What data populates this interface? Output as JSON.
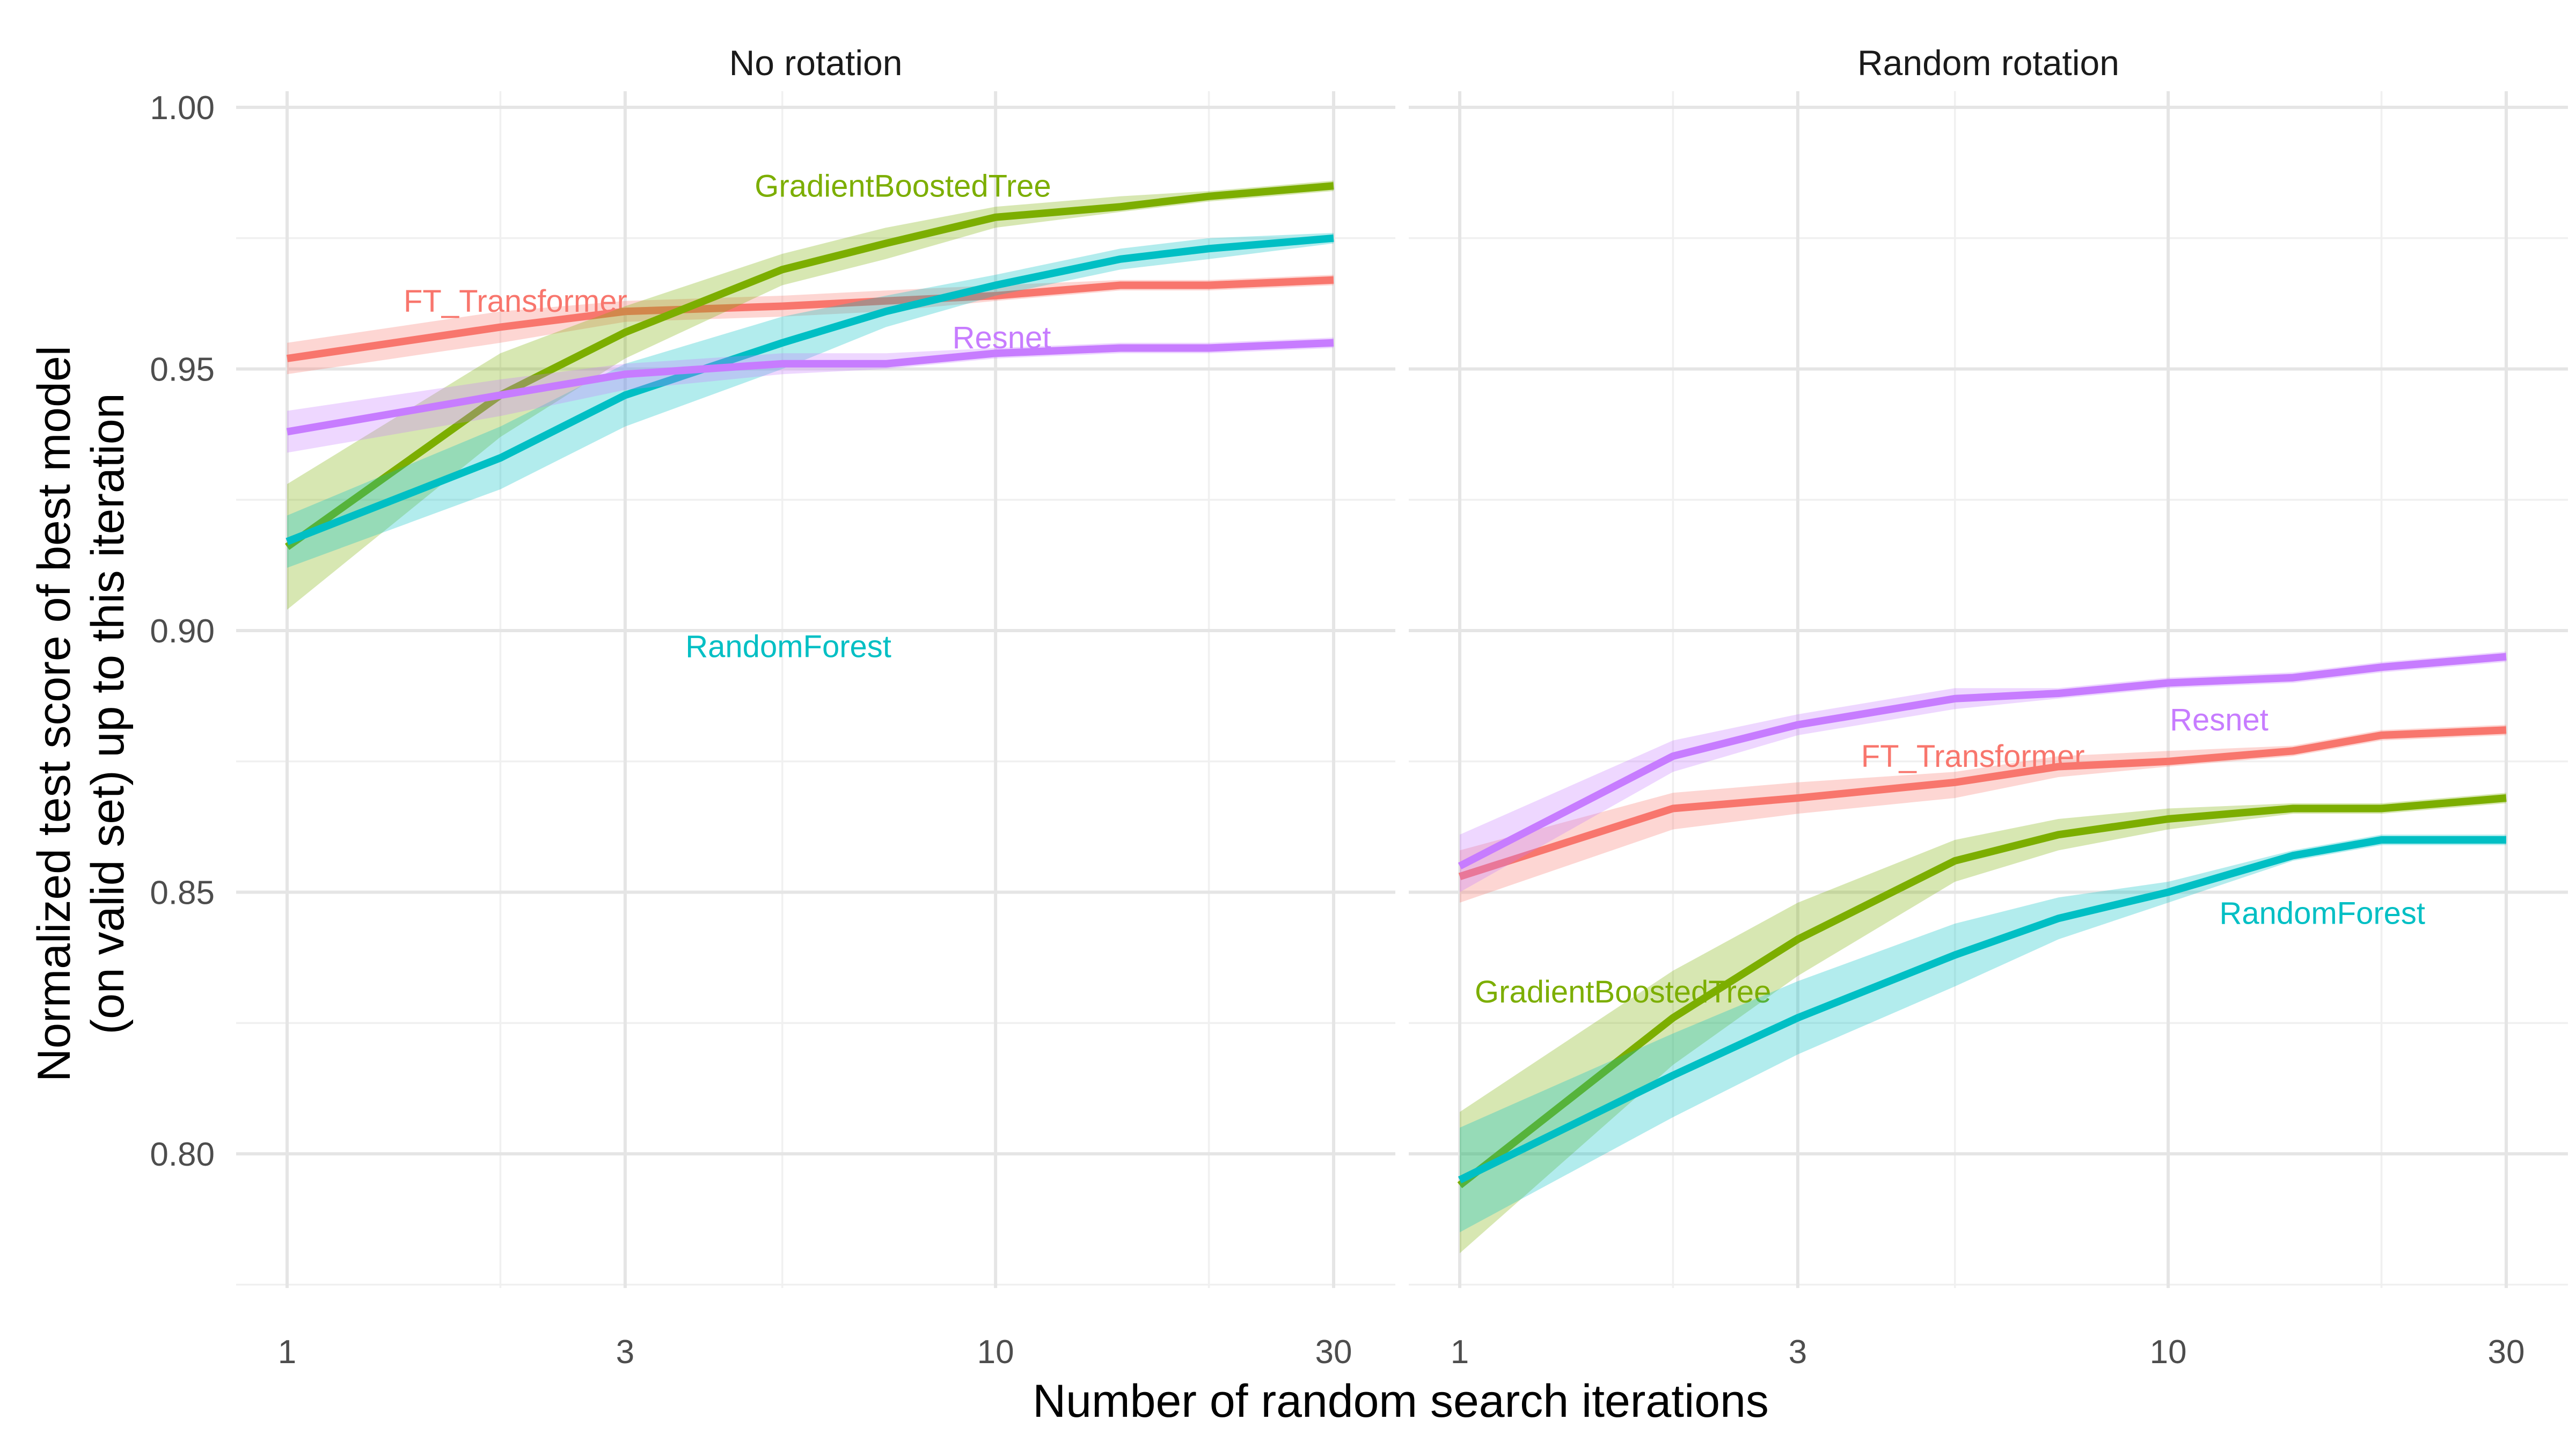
{
  "chart_data": {
    "type": "line",
    "xlabel": "Number of random search iterations",
    "ylabel_lines": [
      "Normalized test score of best model",
      "(on valid set) up to this iteration"
    ],
    "x_scale": "log",
    "x_ticks": [
      1,
      3,
      10,
      30
    ],
    "x_tick_labels": [
      "1",
      "3",
      "10",
      "30"
    ],
    "xlim": [
      1,
      30
    ],
    "ylim": [
      0.775,
      1.0
    ],
    "y_ticks": [
      0.8,
      0.85,
      0.9,
      0.95,
      1.0
    ],
    "y_tick_labels": [
      "0.80",
      "0.85",
      "0.90",
      "0.95",
      "1.00"
    ],
    "grid": true,
    "legend": "none (direct labels)",
    "colors": {
      "FT_Transformer": "#F8766D",
      "GradientBoostedTree": "#7CAE00",
      "RandomForest": "#00BFC4",
      "Resnet": "#C77CFF"
    },
    "panels": [
      {
        "title": "No rotation",
        "series": [
          {
            "name": "FT_Transformer",
            "x": [
              1,
              2,
              3,
              5,
              7,
              10,
              15,
              20,
              30
            ],
            "y": [
              0.952,
              0.958,
              0.961,
              0.962,
              0.963,
              0.964,
              0.966,
              0.966,
              0.967
            ],
            "lo": [
              0.949,
              0.955,
              0.959,
              0.96,
              0.961,
              0.963,
              0.965,
              0.965,
              0.966
            ],
            "hi": [
              0.955,
              0.961,
              0.963,
              0.964,
              0.965,
              0.966,
              0.967,
              0.967,
              0.968
            ],
            "label": {
              "text": "FT_Transformer",
              "x": 2.1,
              "y": 0.963
            }
          },
          {
            "name": "GradientBoostedTree",
            "x": [
              1,
              2,
              3,
              5,
              7,
              10,
              15,
              20,
              30
            ],
            "y": [
              0.916,
              0.945,
              0.957,
              0.969,
              0.974,
              0.979,
              0.981,
              0.983,
              0.985
            ],
            "lo": [
              0.904,
              0.937,
              0.952,
              0.966,
              0.971,
              0.977,
              0.98,
              0.982,
              0.984
            ],
            "hi": [
              0.928,
              0.953,
              0.962,
              0.972,
              0.977,
              0.981,
              0.983,
              0.984,
              0.986
            ],
            "label": {
              "text": "GradientBoostedTree",
              "x": 7.4,
              "y": 0.985
            }
          },
          {
            "name": "RandomForest",
            "x": [
              1,
              2,
              3,
              5,
              7,
              10,
              15,
              20,
              30
            ],
            "y": [
              0.917,
              0.933,
              0.945,
              0.955,
              0.961,
              0.966,
              0.971,
              0.973,
              0.975
            ],
            "lo": [
              0.912,
              0.927,
              0.939,
              0.95,
              0.958,
              0.964,
              0.969,
              0.971,
              0.974
            ],
            "hi": [
              0.922,
              0.939,
              0.951,
              0.96,
              0.964,
              0.968,
              0.973,
              0.975,
              0.976
            ],
            "label": {
              "text": "RandomForest",
              "x": 5.1,
              "y": 0.897
            }
          },
          {
            "name": "Resnet",
            "x": [
              1,
              2,
              3,
              5,
              7,
              10,
              15,
              20,
              30
            ],
            "y": [
              0.938,
              0.945,
              0.949,
              0.951,
              0.951,
              0.953,
              0.954,
              0.954,
              0.955
            ],
            "lo": [
              0.934,
              0.941,
              0.946,
              0.949,
              0.95,
              0.952,
              0.953,
              0.953,
              0.954
            ],
            "hi": [
              0.942,
              0.948,
              0.951,
              0.953,
              0.953,
              0.954,
              0.955,
              0.955,
              0.956
            ],
            "label": {
              "text": "Resnet",
              "x": 10.2,
              "y": 0.956
            }
          }
        ]
      },
      {
        "title": "Random rotation",
        "series": [
          {
            "name": "FT_Transformer",
            "x": [
              1,
              2,
              3,
              5,
              7,
              10,
              15,
              20,
              30
            ],
            "y": [
              0.853,
              0.866,
              0.868,
              0.871,
              0.874,
              0.875,
              0.877,
              0.88,
              0.881
            ],
            "lo": [
              0.848,
              0.862,
              0.865,
              0.868,
              0.872,
              0.874,
              0.876,
              0.879,
              0.88
            ],
            "hi": [
              0.858,
              0.869,
              0.871,
              0.873,
              0.876,
              0.877,
              0.878,
              0.881,
              0.882
            ],
            "label": {
              "text": "FT_Transformer",
              "x": 5.3,
              "y": 0.876
            }
          },
          {
            "name": "GradientBoostedTree",
            "x": [
              1,
              2,
              3,
              5,
              7,
              10,
              15,
              20,
              30
            ],
            "y": [
              0.794,
              0.826,
              0.841,
              0.856,
              0.861,
              0.864,
              0.866,
              0.866,
              0.868
            ],
            "lo": [
              0.781,
              0.817,
              0.834,
              0.852,
              0.858,
              0.862,
              0.865,
              0.865,
              0.867
            ],
            "hi": [
              0.808,
              0.835,
              0.848,
              0.86,
              0.864,
              0.866,
              0.867,
              0.867,
              0.869
            ],
            "label": {
              "text": "GradientBoostedTree",
              "x": 1.7,
              "y": 0.831
            }
          },
          {
            "name": "RandomForest",
            "x": [
              1,
              2,
              3,
              5,
              7,
              10,
              15,
              20,
              30
            ],
            "y": [
              0.795,
              0.815,
              0.826,
              0.838,
              0.845,
              0.85,
              0.857,
              0.86,
              0.86
            ],
            "lo": [
              0.785,
              0.807,
              0.819,
              0.832,
              0.841,
              0.848,
              0.856,
              0.859,
              0.859
            ],
            "hi": [
              0.805,
              0.823,
              0.833,
              0.844,
              0.849,
              0.852,
              0.858,
              0.861,
              0.861
            ],
            "label": {
              "text": "RandomForest",
              "x": 16.5,
              "y": 0.846
            }
          },
          {
            "name": "Resnet",
            "x": [
              1,
              2,
              3,
              5,
              7,
              10,
              15,
              20,
              30
            ],
            "y": [
              0.855,
              0.876,
              0.882,
              0.887,
              0.888,
              0.89,
              0.891,
              0.893,
              0.895
            ],
            "lo": [
              0.85,
              0.873,
              0.88,
              0.885,
              0.887,
              0.889,
              0.89,
              0.892,
              0.894
            ],
            "hi": [
              0.861,
              0.879,
              0.884,
              0.889,
              0.889,
              0.891,
              0.892,
              0.894,
              0.896
            ],
            "label": {
              "text": "Resnet",
              "x": 11.8,
              "y": 0.883
            }
          }
        ]
      }
    ]
  }
}
